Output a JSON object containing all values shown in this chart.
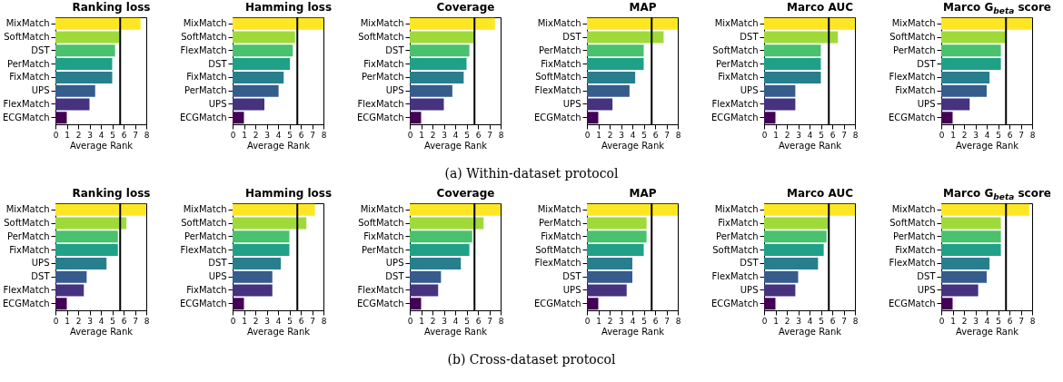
{
  "chart_data": [
    {
      "type": "bar",
      "orientation": "horizontal",
      "title": "Ranking loss",
      "xlabel": "Average Rank",
      "categories": [
        "MixMatch",
        "SoftMatch",
        "DST",
        "PerMatch",
        "FixMatch",
        "UPS",
        "FlexMatch",
        "ECGMatch"
      ],
      "values": [
        7.5,
        5.65,
        5.25,
        5.0,
        5.0,
        3.5,
        3.0,
        1.0
      ],
      "colors": [
        "#fde725",
        "#a0da39",
        "#4ac16d",
        "#1fa187",
        "#277f8e",
        "#365c8d",
        "#46327e",
        "#440154"
      ],
      "xlim": [
        0,
        8
      ],
      "xticks": [
        0,
        1,
        2,
        3,
        4,
        5,
        6,
        7,
        8
      ],
      "ref_lines": [
        {
          "axis": "x",
          "value": 5.7
        }
      ],
      "annotations": [
        "(a) Within-dataset protocol"
      ]
    },
    {
      "type": "bar",
      "orientation": "horizontal",
      "title": "Hamming loss",
      "xlabel": "Average Rank",
      "categories": [
        "MixMatch",
        "SoftMatch",
        "FlexMatch",
        "DST",
        "FixMatch",
        "PerMatch",
        "UPS",
        "ECGMatch"
      ],
      "values": [
        8,
        5.5,
        5.3,
        5.05,
        4.5,
        4.05,
        2.8,
        1.0
      ],
      "colors": [
        "#fde725",
        "#a0da39",
        "#4ac16d",
        "#1fa187",
        "#277f8e",
        "#365c8d",
        "#46327e",
        "#440154"
      ],
      "xlim": [
        0,
        8
      ],
      "xticks": [
        0,
        1,
        2,
        3,
        4,
        5,
        6,
        7,
        8
      ],
      "ref_lines": [
        {
          "axis": "x",
          "value": 5.7
        }
      ]
    },
    {
      "type": "bar",
      "orientation": "horizontal",
      "title": "Coverage",
      "xlabel": "Average Rank",
      "categories": [
        "MixMatch",
        "SoftMatch",
        "DST",
        "FixMatch",
        "PerMatch",
        "UPS",
        "FlexMatch",
        "ECGMatch"
      ],
      "values": [
        7.5,
        5.75,
        5.25,
        5.0,
        4.75,
        3.75,
        3.0,
        1.0
      ],
      "colors": [
        "#fde725",
        "#a0da39",
        "#4ac16d",
        "#1fa187",
        "#277f8e",
        "#365c8d",
        "#46327e",
        "#440154"
      ],
      "xlim": [
        0,
        8
      ],
      "xticks": [
        0,
        1,
        2,
        3,
        4,
        5,
        6,
        7,
        8
      ],
      "ref_lines": [
        {
          "axis": "x",
          "value": 5.7
        }
      ]
    },
    {
      "type": "bar",
      "orientation": "horizontal",
      "title": "MAP",
      "xlabel": "Average Rank",
      "categories": [
        "MixMatch",
        "DST",
        "PerMatch",
        "FixMatch",
        "SoftMatch",
        "FlexMatch",
        "UPS",
        "ECGMatch"
      ],
      "values": [
        8,
        6.75,
        5.0,
        5.0,
        4.25,
        3.75,
        2.25,
        1.0
      ],
      "colors": [
        "#fde725",
        "#a0da39",
        "#4ac16d",
        "#1fa187",
        "#277f8e",
        "#365c8d",
        "#46327e",
        "#440154"
      ],
      "xlim": [
        0,
        8
      ],
      "xticks": [
        0,
        1,
        2,
        3,
        4,
        5,
        6,
        7,
        8
      ],
      "ref_lines": [
        {
          "axis": "x",
          "value": 5.7
        }
      ]
    },
    {
      "type": "bar",
      "orientation": "horizontal",
      "title": "Marco AUC",
      "xlabel": "Average Rank",
      "categories": [
        "MixMatch",
        "DST",
        "SoftMatch",
        "PerMatch",
        "FixMatch",
        "UPS",
        "FlexMatch",
        "ECGMatch"
      ],
      "values": [
        8,
        6.5,
        5.0,
        5.0,
        5.0,
        2.75,
        2.75,
        1.0
      ],
      "colors": [
        "#fde725",
        "#a0da39",
        "#4ac16d",
        "#1fa187",
        "#277f8e",
        "#365c8d",
        "#46327e",
        "#440154"
      ],
      "xlim": [
        0,
        8
      ],
      "xticks": [
        0,
        1,
        2,
        3,
        4,
        5,
        6,
        7,
        8
      ],
      "ref_lines": [
        {
          "axis": "x",
          "value": 5.7
        }
      ]
    },
    {
      "type": "bar",
      "orientation": "horizontal",
      "title": "Marco G$_{beta}$ score",
      "xlabel": "Average Rank",
      "categories": [
        "MixMatch",
        "SoftMatch",
        "PerMatch",
        "DST",
        "FlexMatch",
        "FixMatch",
        "UPS",
        "ECGMatch"
      ],
      "values": [
        8,
        5.75,
        5.25,
        5.25,
        4.25,
        4.0,
        2.5,
        1.0
      ],
      "colors": [
        "#fde725",
        "#a0da39",
        "#4ac16d",
        "#1fa187",
        "#277f8e",
        "#365c8d",
        "#46327e",
        "#440154"
      ],
      "xlim": [
        0,
        8
      ],
      "xticks": [
        0,
        1,
        2,
        3,
        4,
        5,
        6,
        7,
        8
      ],
      "ref_lines": [
        {
          "axis": "x",
          "value": 5.7
        }
      ]
    },
    {
      "type": "bar",
      "orientation": "horizontal",
      "title": "Ranking loss",
      "xlabel": "Average Rank",
      "categories": [
        "MixMatch",
        "SoftMatch",
        "PerMatch",
        "FixMatch",
        "UPS",
        "DST",
        "FlexMatch",
        "ECGMatch"
      ],
      "values": [
        8,
        6.25,
        5.5,
        5.5,
        4.5,
        2.75,
        2.5,
        1.0
      ],
      "colors": [
        "#fde725",
        "#a0da39",
        "#4ac16d",
        "#1fa187",
        "#277f8e",
        "#365c8d",
        "#46327e",
        "#440154"
      ],
      "xlim": [
        0,
        8
      ],
      "xticks": [
        0,
        1,
        2,
        3,
        4,
        5,
        6,
        7,
        8
      ],
      "ref_lines": [
        {
          "axis": "x",
          "value": 5.7
        }
      ],
      "annotations": [
        "(b) Cross-dataset protocol"
      ]
    },
    {
      "type": "bar",
      "orientation": "horizontal",
      "title": "Hamming loss",
      "xlabel": "Average Rank",
      "categories": [
        "MixMatch",
        "SoftMatch",
        "PerMatch",
        "FlexMatch",
        "DST",
        "UPS",
        "FixMatch",
        "ECGMatch"
      ],
      "values": [
        7.25,
        6.5,
        5.0,
        5.0,
        4.25,
        3.5,
        3.5,
        1.0
      ],
      "colors": [
        "#fde725",
        "#a0da39",
        "#4ac16d",
        "#1fa187",
        "#277f8e",
        "#365c8d",
        "#46327e",
        "#440154"
      ],
      "xlim": [
        0,
        8
      ],
      "xticks": [
        0,
        1,
        2,
        3,
        4,
        5,
        6,
        7,
        8
      ],
      "ref_lines": [
        {
          "axis": "x",
          "value": 5.7
        }
      ]
    },
    {
      "type": "bar",
      "orientation": "horizontal",
      "title": "Coverage",
      "xlabel": "Average Rank",
      "categories": [
        "MixMatch",
        "SoftMatch",
        "FixMatch",
        "PerMatch",
        "UPS",
        "DST",
        "FlexMatch",
        "ECGMatch"
      ],
      "values": [
        8,
        6.5,
        5.5,
        5.25,
        4.5,
        2.75,
        2.5,
        1.0
      ],
      "colors": [
        "#fde725",
        "#a0da39",
        "#4ac16d",
        "#1fa187",
        "#277f8e",
        "#365c8d",
        "#46327e",
        "#440154"
      ],
      "xlim": [
        0,
        8
      ],
      "xticks": [
        0,
        1,
        2,
        3,
        4,
        5,
        6,
        7,
        8
      ],
      "ref_lines": [
        {
          "axis": "x",
          "value": 5.7
        }
      ]
    },
    {
      "type": "bar",
      "orientation": "horizontal",
      "title": "MAP",
      "xlabel": "Average Rank",
      "categories": [
        "MixMatch",
        "PerMatch",
        "FixMatch",
        "SoftMatch",
        "FlexMatch",
        "DST",
        "UPS",
        "ECGMatch"
      ],
      "values": [
        8,
        5.25,
        5.25,
        5.0,
        4.0,
        4.0,
        3.5,
        1.0
      ],
      "colors": [
        "#fde725",
        "#a0da39",
        "#4ac16d",
        "#1fa187",
        "#277f8e",
        "#365c8d",
        "#46327e",
        "#440154"
      ],
      "xlim": [
        0,
        8
      ],
      "xticks": [
        0,
        1,
        2,
        3,
        4,
        5,
        6,
        7,
        8
      ],
      "ref_lines": [
        {
          "axis": "x",
          "value": 5.7
        }
      ]
    },
    {
      "type": "bar",
      "orientation": "horizontal",
      "title": "Marco AUC",
      "xlabel": "Average Rank",
      "categories": [
        "MixMatch",
        "FixMatch",
        "PerMatch",
        "SoftMatch",
        "DST",
        "FlexMatch",
        "UPS",
        "ECGMatch"
      ],
      "values": [
        8,
        5.75,
        5.5,
        5.25,
        4.75,
        3.0,
        2.75,
        1.0
      ],
      "colors": [
        "#fde725",
        "#a0da39",
        "#4ac16d",
        "#1fa187",
        "#277f8e",
        "#365c8d",
        "#46327e",
        "#440154"
      ],
      "xlim": [
        0,
        8
      ],
      "xticks": [
        0,
        1,
        2,
        3,
        4,
        5,
        6,
        7,
        8
      ],
      "ref_lines": [
        {
          "axis": "x",
          "value": 5.7
        }
      ]
    },
    {
      "type": "bar",
      "orientation": "horizontal",
      "title": "Marco G$_{beta}$ score",
      "xlabel": "Average Rank",
      "categories": [
        "MixMatch",
        "SoftMatch",
        "PerMatch",
        "FixMatch",
        "FlexMatch",
        "DST",
        "UPS",
        "ECGMatch"
      ],
      "values": [
        7.75,
        5.25,
        5.25,
        5.25,
        4.25,
        4.0,
        3.25,
        1.0
      ],
      "colors": [
        "#fde725",
        "#a0da39",
        "#4ac16d",
        "#1fa187",
        "#277f8e",
        "#365c8d",
        "#46327e",
        "#440154"
      ],
      "xlim": [
        0,
        8
      ],
      "xticks": [
        0,
        1,
        2,
        3,
        4,
        5,
        6,
        7,
        8
      ],
      "ref_lines": [
        {
          "axis": "x",
          "value": 5.7
        }
      ]
    }
  ]
}
